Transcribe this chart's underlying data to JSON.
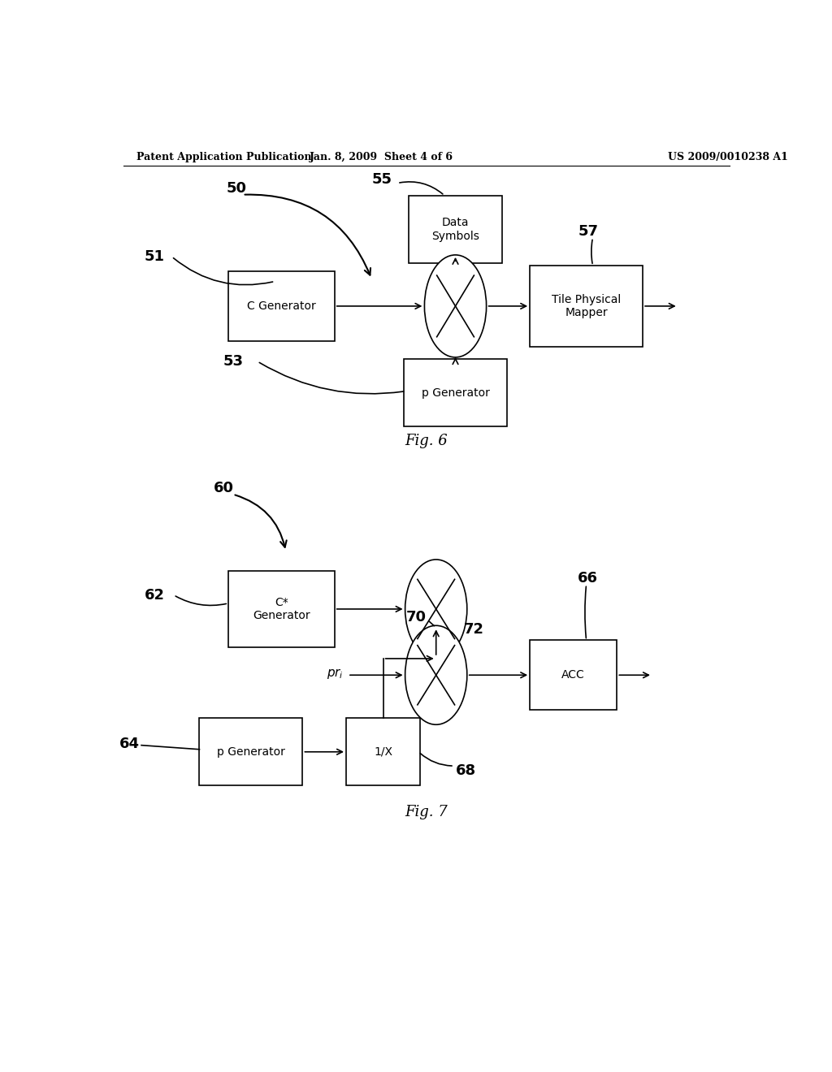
{
  "bg_color": "#ffffff",
  "header_left": "Patent Application Publication",
  "header_mid": "Jan. 8, 2009  Sheet 4 of 6",
  "header_right": "US 2009/0010238 A1",
  "fig6_title": "Fig. 6",
  "fig7_title": "Fig. 7"
}
